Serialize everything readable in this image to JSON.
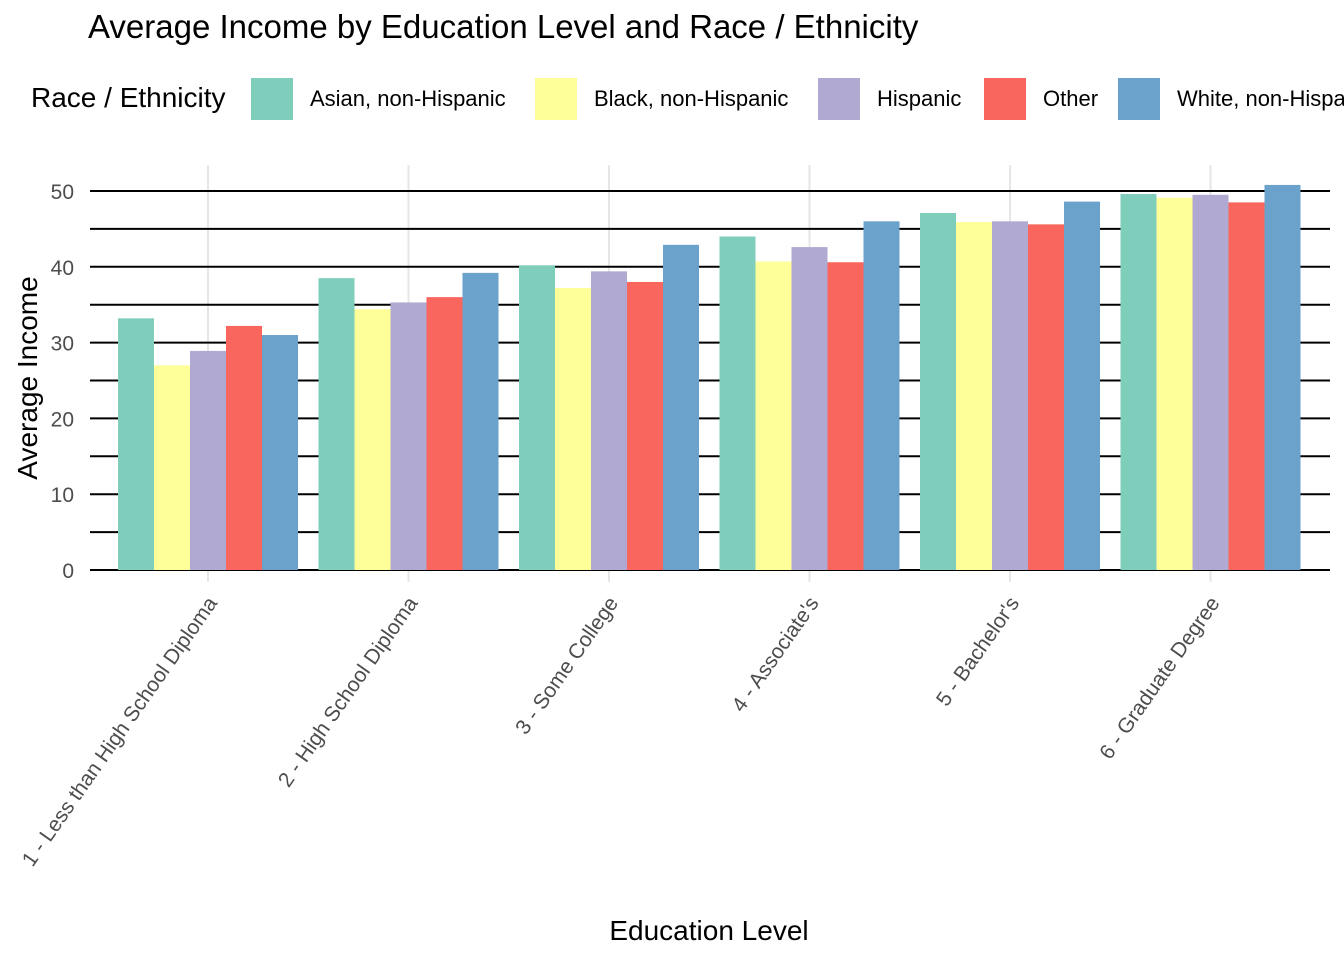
{
  "chart_data": {
    "type": "bar",
    "title": "Average Income by Education Level and Race / Ethnicity",
    "xlabel": "Education Level",
    "ylabel": "Average Income",
    "ylim": [
      0,
      53
    ],
    "yticks": [
      "0",
      "10",
      "20",
      "30",
      "40",
      "50"
    ],
    "grid": true,
    "legend": {
      "title": "Race / Ethnicity",
      "placement": "top"
    },
    "categories": [
      "1 - Less than High School Diploma",
      "2 - High School Diploma",
      "3 - Some College",
      "4 - Associate's",
      "5 - Bachelor's",
      "6 - Graduate Degree"
    ],
    "series": [
      {
        "name": "Asian, non-Hispanic",
        "color": "#7FCDBB",
        "values": [
          33.2,
          38.5,
          40.2,
          44.0,
          47.1,
          49.6
        ]
      },
      {
        "name": "Black, non-Hispanic",
        "color": "#FFFF99",
        "values": [
          27.0,
          34.4,
          37.2,
          40.7,
          45.9,
          49.1
        ]
      },
      {
        "name": "Hispanic",
        "color": "#B0A9D1",
        "values": [
          28.9,
          35.3,
          39.4,
          42.6,
          46.0,
          49.5
        ]
      },
      {
        "name": "Other",
        "color": "#F8665E",
        "values": [
          32.2,
          36.0,
          38.0,
          40.6,
          45.6,
          48.5
        ]
      },
      {
        "name": "White, non-Hispanic",
        "color": "#6BA2CB",
        "values": [
          31.0,
          39.2,
          42.9,
          46.0,
          48.6,
          50.8
        ]
      }
    ]
  }
}
